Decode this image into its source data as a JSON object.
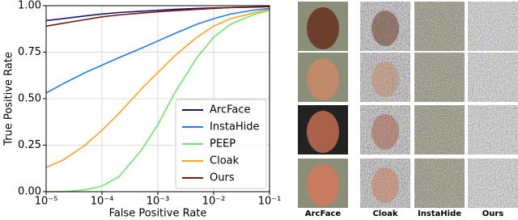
{
  "chart_data": {
    "type": "line",
    "x_label": "False Positive Rate",
    "y_label": "True Positive Rate",
    "xscale": "log",
    "grid": true,
    "legend": "lower right",
    "xlim": [
      1e-05,
      0.1
    ],
    "xticks": [
      {
        "value": 1e-05,
        "label": "10⁻⁵"
      },
      {
        "value": 0.0001,
        "label": "10⁻⁴"
      },
      {
        "value": 0.001,
        "label": "10⁻³"
      },
      {
        "value": 0.01,
        "label": "10⁻²"
      },
      {
        "value": 0.1,
        "label": "10⁻¹"
      }
    ],
    "ylim": [
      0,
      1
    ],
    "yticks": [
      {
        "value": 0,
        "label": "0.00"
      },
      {
        "value": 0.25,
        "label": "0.25"
      },
      {
        "value": 0.5,
        "label": "0.50"
      },
      {
        "value": 0.75,
        "label": "0.75"
      },
      {
        "value": 1,
        "label": "1.00"
      }
    ],
    "x": [
      1e-05,
      2e-05,
      5e-05,
      0.0001,
      0.0002,
      0.0005,
      0.001,
      0.002,
      0.005,
      0.01,
      0.02,
      0.05,
      0.1
    ],
    "series": [
      {
        "name": "ArcFace",
        "color": "#16166b",
        "values": [
          0.92,
          0.93,
          0.945,
          0.955,
          0.963,
          0.97,
          0.975,
          0.98,
          0.985,
          0.988,
          0.99,
          0.992,
          0.995
        ]
      },
      {
        "name": "InstaHide",
        "color": "#1e7be6",
        "values": [
          0.53,
          0.58,
          0.64,
          0.68,
          0.72,
          0.77,
          0.81,
          0.85,
          0.9,
          0.93,
          0.955,
          0.975,
          0.985
        ]
      },
      {
        "name": "PEEP",
        "color": "#6de66d",
        "values": [
          0,
          0,
          0.01,
          0.03,
          0.08,
          0.22,
          0.36,
          0.53,
          0.72,
          0.83,
          0.9,
          0.95,
          0.975
        ]
      },
      {
        "name": "Cloak",
        "color": "#ff9f1c",
        "values": [
          0.13,
          0.17,
          0.25,
          0.33,
          0.42,
          0.55,
          0.64,
          0.73,
          0.83,
          0.89,
          0.93,
          0.96,
          0.98
        ]
      },
      {
        "name": "Ours",
        "color": "#7a1717",
        "values": [
          0.89,
          0.905,
          0.925,
          0.94,
          0.95,
          0.96,
          0.967,
          0.973,
          0.98,
          0.985,
          0.99,
          0.993,
          0.995
        ]
      }
    ]
  },
  "image_grid": {
    "columns": [
      "ArcFace",
      "Cloak",
      "InstaHide",
      "Ours"
    ]
  }
}
